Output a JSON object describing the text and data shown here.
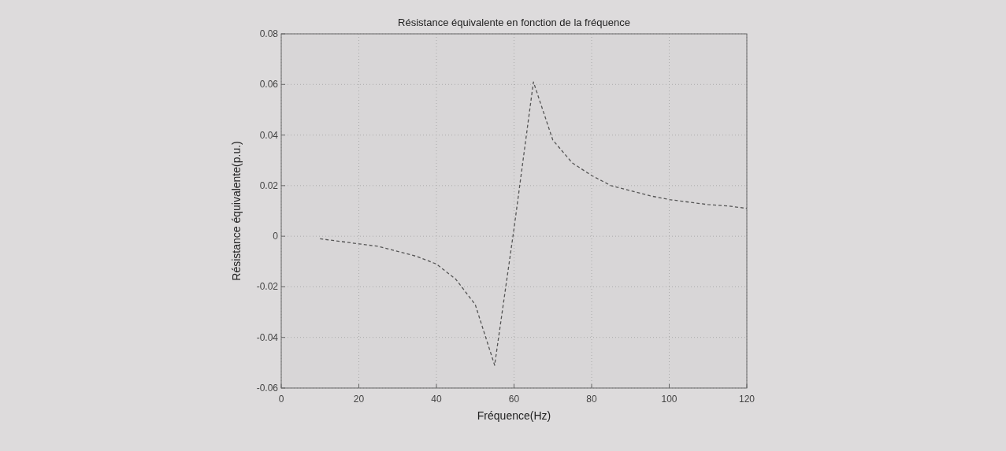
{
  "chart_data": {
    "type": "line",
    "title": "Résistance équivalente en fonction de la fréquence",
    "xlabel": "Fréquence(Hz)",
    "ylabel": "Résistance équivalente(p.u.)",
    "x": [
      10,
      15,
      20,
      25,
      30,
      35,
      40,
      45,
      50,
      55,
      60,
      65,
      70,
      75,
      80,
      85,
      90,
      95,
      100,
      105,
      110,
      115,
      120
    ],
    "series": [
      {
        "color": "#555555",
        "values": [
          -0.001,
          -0.002,
          -0.003,
          -0.004,
          -0.006,
          -0.008,
          -0.011,
          -0.017,
          -0.027,
          -0.051,
          0.003,
          0.061,
          0.038,
          0.029,
          0.024,
          0.02,
          0.018,
          0.016,
          0.0145,
          0.0135,
          0.0125,
          0.012,
          0.011
        ]
      }
    ],
    "xlim": [
      0,
      120
    ],
    "xticks": [
      0,
      20,
      40,
      60,
      80,
      100,
      120
    ],
    "ylim": [
      -0.06,
      0.08
    ],
    "yticks": [
      {
        "value": -0.06,
        "label": "-0.06"
      },
      {
        "value": -0.04,
        "label": "-0.04"
      },
      {
        "value": -0.02,
        "label": "-0.02"
      },
      0,
      {
        "value": 0.02,
        "label": "0.02"
      },
      {
        "value": 0.04,
        "label": "0.04"
      },
      {
        "value": 0.06,
        "label": "0.06"
      },
      {
        "value": 0.08,
        "label": "0.08"
      }
    ],
    "grid": true,
    "line_style": "dashed"
  }
}
